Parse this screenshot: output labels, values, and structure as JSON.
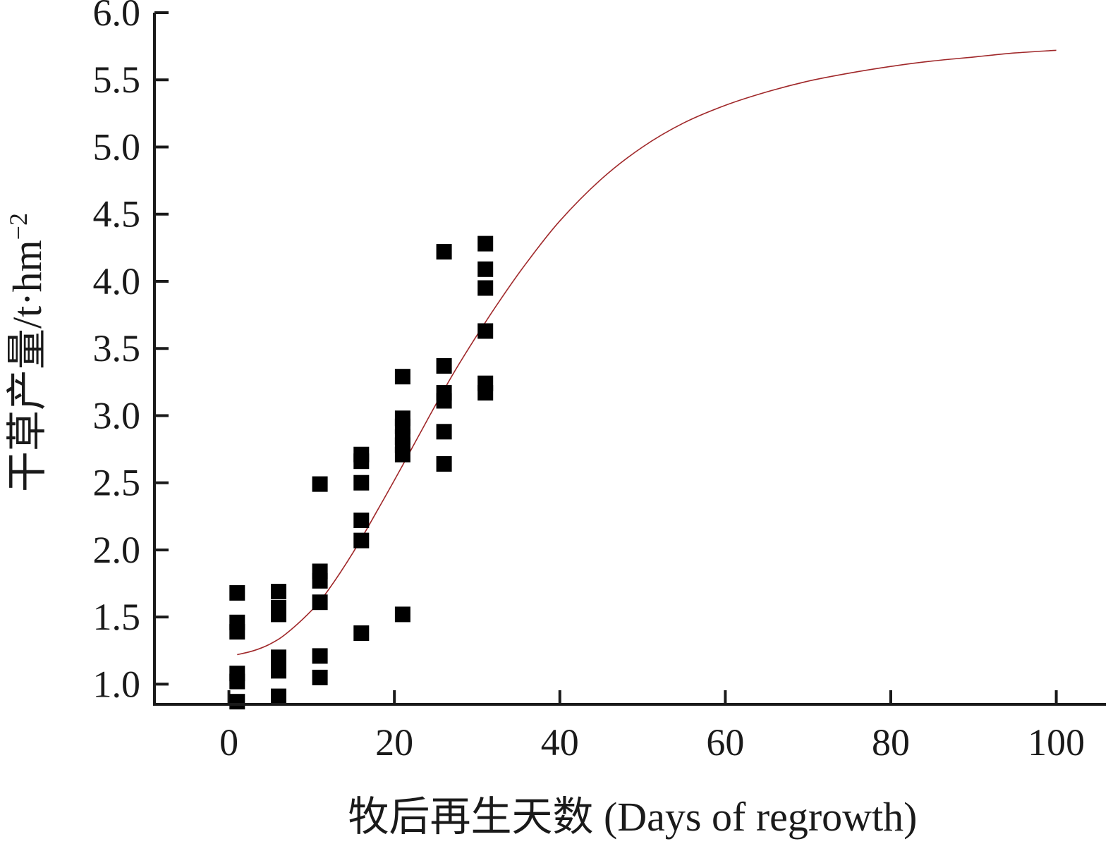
{
  "chart_data": {
    "type": "scatter",
    "xlabel": "牧后再生天数 (Days of regrowth)",
    "ylabel": "干草产量/t·hm",
    "ylabel_sup": "−2",
    "xlim": [
      -9,
      106
    ],
    "ylim": [
      0.85,
      6.0
    ],
    "xticks": [
      0,
      20,
      40,
      60,
      80,
      100
    ],
    "xtick_labels": [
      "0",
      "20",
      "40",
      "60",
      "80",
      "100"
    ],
    "yticks": [
      1.0,
      1.5,
      2.0,
      2.5,
      3.0,
      3.5,
      4.0,
      4.5,
      5.0,
      5.5,
      6.0
    ],
    "ytick_labels": [
      "1.0",
      "1.5",
      "2.0",
      "2.5",
      "3.0",
      "3.5",
      "4.0",
      "4.5",
      "5.0",
      "5.5",
      "6.0"
    ],
    "grid": false,
    "colors": {
      "points": "#000000",
      "fit_line": "#a0282a",
      "axes": "#1a1a1a"
    },
    "series": [
      {
        "type": "scatter",
        "points": [
          [
            1,
            1.68
          ],
          [
            1,
            1.46
          ],
          [
            1,
            1.39
          ],
          [
            1,
            1.08
          ],
          [
            1,
            1.02
          ],
          [
            1,
            0.87
          ],
          [
            6,
            1.69
          ],
          [
            6,
            1.57
          ],
          [
            6,
            1.52
          ],
          [
            6,
            1.2
          ],
          [
            6,
            1.15
          ],
          [
            6,
            1.1
          ],
          [
            6,
            0.91
          ],
          [
            11,
            2.49
          ],
          [
            11,
            1.84
          ],
          [
            11,
            1.77
          ],
          [
            11,
            1.61
          ],
          [
            11,
            1.21
          ],
          [
            11,
            1.05
          ],
          [
            16,
            2.71
          ],
          [
            16,
            2.66
          ],
          [
            16,
            2.5
          ],
          [
            16,
            2.22
          ],
          [
            16,
            2.07
          ],
          [
            16,
            1.38
          ],
          [
            21,
            3.29
          ],
          [
            21,
            2.98
          ],
          [
            21,
            2.92
          ],
          [
            21,
            2.84
          ],
          [
            21,
            2.78
          ],
          [
            21,
            2.71
          ],
          [
            21,
            1.52
          ],
          [
            26,
            4.22
          ],
          [
            26,
            3.37
          ],
          [
            26,
            3.17
          ],
          [
            26,
            3.11
          ],
          [
            26,
            2.88
          ],
          [
            26,
            2.64
          ],
          [
            31,
            4.28
          ],
          [
            31,
            4.09
          ],
          [
            31,
            3.95
          ],
          [
            31,
            3.63
          ],
          [
            31,
            3.24
          ],
          [
            31,
            3.17
          ]
        ]
      },
      {
        "type": "line",
        "points": [
          [
            1,
            1.22
          ],
          [
            3,
            1.25
          ],
          [
            5,
            1.3
          ],
          [
            7,
            1.38
          ],
          [
            10,
            1.55
          ],
          [
            12,
            1.7
          ],
          [
            15,
            1.98
          ],
          [
            18,
            2.3
          ],
          [
            21,
            2.63
          ],
          [
            24,
            2.97
          ],
          [
            27,
            3.3
          ],
          [
            30,
            3.6
          ],
          [
            33,
            3.88
          ],
          [
            36,
            4.14
          ],
          [
            40,
            4.45
          ],
          [
            45,
            4.76
          ],
          [
            50,
            5.0
          ],
          [
            55,
            5.18
          ],
          [
            60,
            5.31
          ],
          [
            65,
            5.41
          ],
          [
            70,
            5.49
          ],
          [
            75,
            5.55
          ],
          [
            80,
            5.6
          ],
          [
            85,
            5.64
          ],
          [
            90,
            5.67
          ],
          [
            95,
            5.7
          ],
          [
            100,
            5.72
          ]
        ]
      }
    ]
  }
}
